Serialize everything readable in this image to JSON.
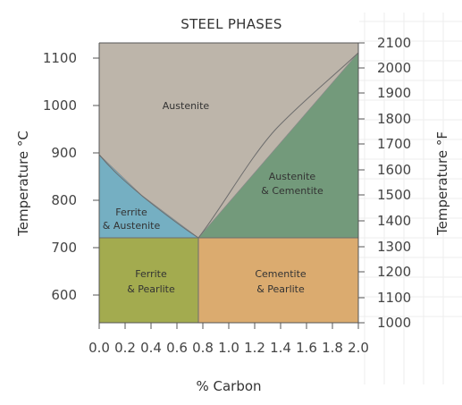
{
  "diagram": {
    "title": "STEEL PHASES",
    "x_axis_label": "% Carbon",
    "y_left_label": "Temperature °C",
    "y_right_label": "Temperature °F",
    "x_ticks": [
      "0.0",
      "0.2",
      "0.4",
      "0.6",
      "0.8",
      "1.0",
      "1.2",
      "1.4",
      "1.6",
      "1.8",
      "2.0"
    ],
    "y_left_ticks": [
      "600",
      "700",
      "800",
      "900",
      "1000",
      "1100"
    ],
    "y_right_ticks": [
      "1000",
      "1100",
      "1200",
      "1300",
      "1400",
      "1500",
      "1600",
      "1700",
      "1800",
      "1900",
      "2000",
      "2100"
    ],
    "regions": {
      "austenite": "Austenite",
      "austenite_cementite_1": "Austenite",
      "austenite_cementite_2": "& Cementite",
      "ferrite_austenite_1": "Ferrite",
      "ferrite_austenite_2": "& Austenite",
      "ferrite_pearlite_1": "Ferrite",
      "ferrite_pearlite_2": "& Pearlite",
      "cementite_pearlite_1": "Cementite",
      "cementite_pearlite_2": "& Pearlite"
    },
    "colors": {
      "austenite": "#bdb5aa",
      "austenite_cementite": "#739a7b",
      "ferrite_austenite": "#75afc2",
      "ferrite_pearlite": "#a3ab4f",
      "cementite_pearlite": "#dbab6f",
      "axis": "#555555",
      "grid": "#eeeeee"
    }
  }
}
